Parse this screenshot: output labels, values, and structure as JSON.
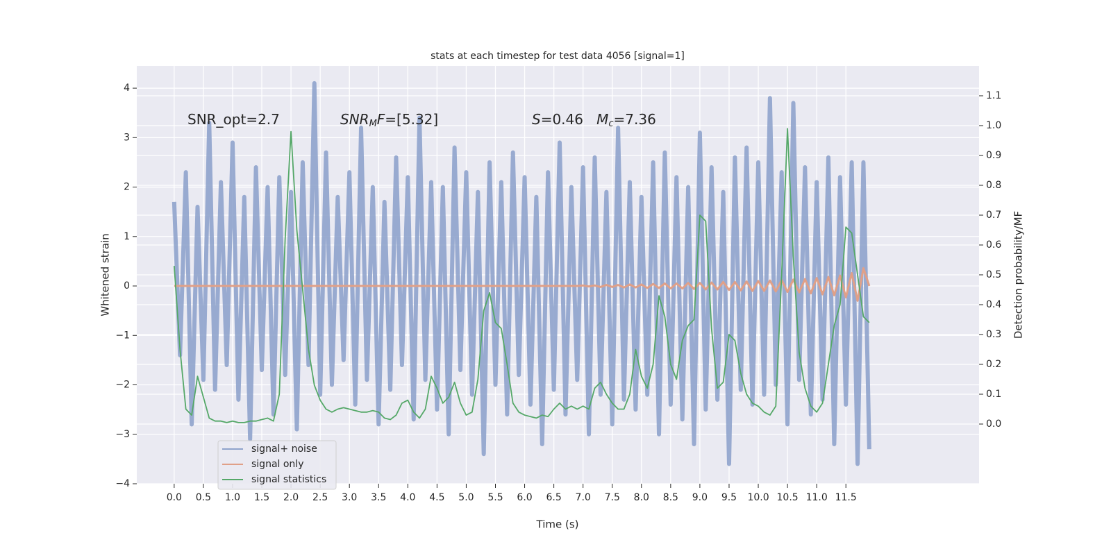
{
  "chart_data": {
    "type": "line",
    "title": "stats at each timestep for test data 4056 [signal=1]",
    "xlabel": "Time (s)",
    "ylabel": "Whitened strain",
    "y2label": "Detection probability/MF",
    "annotations": [
      [
        {
          "text": "SNR_opt=2.7"
        }
      ],
      [
        {
          "text": "SNR",
          "italic": true
        },
        {
          "text": "M",
          "italic": true,
          "sub": true
        },
        {
          "text": "F",
          "italic": true
        },
        {
          "text": "=[5.32]"
        }
      ],
      [
        {
          "text": "S",
          "italic": true
        },
        {
          "text": "=0.46   "
        },
        {
          "text": "M",
          "italic": true
        },
        {
          "text": "c",
          "italic": true,
          "sub": true
        },
        {
          "text": "=7.36"
        }
      ]
    ],
    "grid": true,
    "legend": "lower left",
    "xlim": [
      -0.64,
      13.78
    ],
    "ylim": [
      -4.0,
      4.45
    ],
    "y2lim": [
      -0.2,
      1.2
    ],
    "xticks": [
      {
        "value": 0,
        "label": "0.0"
      },
      {
        "value": 0.5,
        "label": "0.5"
      },
      {
        "value": 1,
        "label": "1.0"
      },
      {
        "value": 1.5,
        "label": "1.5"
      },
      {
        "value": 2,
        "label": "2.0"
      },
      {
        "value": 2.5,
        "label": "2.5"
      },
      {
        "value": 3,
        "label": "3.0"
      },
      {
        "value": 3.5,
        "label": "3.5"
      },
      {
        "value": 4,
        "label": "4.0"
      },
      {
        "value": 4.5,
        "label": "4.5"
      },
      {
        "value": 5,
        "label": "5.0"
      },
      {
        "value": 5.5,
        "label": "5.5"
      },
      {
        "value": 6,
        "label": "6.0"
      },
      {
        "value": 6.5,
        "label": "6.5"
      },
      {
        "value": 7,
        "label": "7.0"
      },
      {
        "value": 7.5,
        "label": "7.5"
      },
      {
        "value": 8,
        "label": "8.0"
      },
      {
        "value": 8.5,
        "label": "8.5"
      },
      {
        "value": 9,
        "label": "9.0"
      },
      {
        "value": 9.5,
        "label": "9.5"
      },
      {
        "value": 10,
        "label": "10.0"
      },
      {
        "value": 10.5,
        "label": "10.5"
      },
      {
        "value": 11,
        "label": "11.0"
      },
      {
        "value": 11.5,
        "label": "11.5"
      }
    ],
    "yticks": [
      {
        "value": -4,
        "label": "−4"
      },
      {
        "value": -3,
        "label": "−3"
      },
      {
        "value": -2,
        "label": "−2"
      },
      {
        "value": -1,
        "label": "−1"
      },
      0,
      1,
      2,
      3,
      4
    ],
    "y2ticks": [
      {
        "value": 0,
        "label": "0.0"
      },
      {
        "value": 0.1,
        "label": "0.1"
      },
      {
        "value": 0.2,
        "label": "0.2"
      },
      {
        "value": 0.3,
        "label": "0.3"
      },
      {
        "value": 0.4,
        "label": "0.4"
      },
      {
        "value": 0.5,
        "label": "0.5"
      },
      {
        "value": 0.6,
        "label": "0.6"
      },
      {
        "value": 0.7,
        "label": "0.7"
      },
      {
        "value": 0.8,
        "label": "0.8"
      },
      {
        "value": 0.9,
        "label": "0.9"
      },
      {
        "value": 1,
        "label": "1.0"
      },
      {
        "value": 1.1,
        "label": "1.1"
      }
    ],
    "x": [
      0.0,
      0.1,
      0.2,
      0.3,
      0.4,
      0.5,
      0.6,
      0.7,
      0.8,
      0.9,
      1.0,
      1.1,
      1.2,
      1.3,
      1.4,
      1.5,
      1.6,
      1.7,
      1.8,
      1.9,
      2.0,
      2.1,
      2.2,
      2.3,
      2.4,
      2.5,
      2.6,
      2.7,
      2.8,
      2.9,
      3.0,
      3.1,
      3.2,
      3.3,
      3.4,
      3.5,
      3.6,
      3.7,
      3.8,
      3.9,
      4.0,
      4.1,
      4.2,
      4.3,
      4.4,
      4.5,
      4.6,
      4.7,
      4.8,
      4.9,
      5.0,
      5.1,
      5.2,
      5.3,
      5.4,
      5.5,
      5.6,
      5.7,
      5.8,
      5.9,
      6.0,
      6.1,
      6.2,
      6.3,
      6.4,
      6.5,
      6.6,
      6.7,
      6.8,
      6.9,
      7.0,
      7.1,
      7.2,
      7.3,
      7.4,
      7.5,
      7.6,
      7.7,
      7.8,
      7.9,
      8.0,
      8.1,
      8.2,
      8.3,
      8.4,
      8.5,
      8.6,
      8.7,
      8.8,
      8.9,
      9.0,
      9.1,
      9.2,
      9.3,
      9.4,
      9.5,
      9.6,
      9.7,
      9.8,
      9.9,
      10.0,
      10.1,
      10.2,
      10.3,
      10.4,
      10.5,
      10.6,
      10.7,
      10.8,
      10.9,
      11.0,
      11.1,
      11.2,
      11.3,
      11.4,
      11.5,
      11.6,
      11.7,
      11.8,
      11.9
    ],
    "series": [
      {
        "name": "signal+ noise",
        "color": "#8fa3cc",
        "values": [
          1.7,
          -1.4,
          2.3,
          -2.8,
          1.6,
          -1.9,
          3.3,
          -2.1,
          2.1,
          -1.6,
          2.9,
          -2.3,
          1.8,
          -3.1,
          2.4,
          -1.7,
          2.0,
          -2.6,
          2.2,
          -1.8,
          1.9,
          -2.9,
          2.5,
          -1.6,
          4.1,
          -2.2,
          2.7,
          -2.0,
          1.8,
          -1.5,
          2.3,
          -2.4,
          3.2,
          -1.9,
          2.0,
          -2.8,
          1.7,
          -2.1,
          2.6,
          -1.6,
          2.2,
          -2.7,
          3.4,
          -1.9,
          2.1,
          -2.5,
          2.0,
          -3.0,
          2.8,
          -1.7,
          2.3,
          -2.2,
          1.9,
          -3.4,
          2.5,
          -2.0,
          2.1,
          -2.6,
          2.7,
          -1.8,
          2.2,
          -2.4,
          1.8,
          -3.2,
          2.3,
          -2.1,
          2.9,
          -2.6,
          2.0,
          -1.9,
          2.4,
          -3.0,
          2.6,
          -2.2,
          1.9,
          -2.8,
          3.2,
          -2.3,
          2.1,
          -2.5,
          1.8,
          -2.2,
          2.5,
          -3.0,
          2.7,
          -2.4,
          2.2,
          -2.7,
          2.0,
          -3.2,
          3.1,
          -2.5,
          2.4,
          -2.3,
          1.9,
          -3.6,
          2.6,
          -2.1,
          2.8,
          -2.4,
          2.5,
          -2.2,
          3.8,
          -2.0,
          2.3,
          -2.8,
          3.7,
          -1.9,
          2.4,
          -2.6,
          2.1,
          -2.3,
          2.6,
          -3.2,
          2.2,
          -2.4,
          2.5,
          -3.6,
          2.5,
          -3.3
        ]
      },
      {
        "name": "signal only",
        "color": "#e0a088",
        "values": [
          0,
          0,
          0,
          0,
          0,
          0,
          0,
          0,
          0,
          0,
          0,
          0,
          0,
          0,
          0,
          0,
          0,
          0,
          0,
          0,
          0,
          0,
          0,
          0,
          0,
          0,
          0,
          0,
          0,
          0,
          0,
          0,
          0,
          0,
          0,
          0,
          0,
          0,
          0,
          0,
          0,
          0,
          0,
          0,
          0,
          0,
          0,
          0,
          0,
          0,
          0,
          0,
          0,
          0,
          0,
          0,
          0,
          0,
          0,
          0,
          0,
          0,
          0,
          0,
          0,
          0,
          0,
          0,
          0,
          0,
          0.01,
          -0.01,
          0.01,
          -0.02,
          0.02,
          -0.02,
          0.02,
          -0.03,
          0.03,
          -0.03,
          0.03,
          -0.04,
          0.04,
          -0.04,
          0.05,
          -0.05,
          0.05,
          -0.05,
          0.06,
          -0.06,
          0.06,
          -0.07,
          0.07,
          -0.07,
          0.08,
          -0.08,
          0.08,
          -0.09,
          0.09,
          -0.1,
          0.1,
          -0.1,
          0.11,
          -0.11,
          0.12,
          -0.12,
          0.13,
          -0.13,
          0.14,
          -0.15,
          0.16,
          -0.17,
          0.18,
          -0.19,
          0.21,
          -0.23,
          0.26,
          -0.3,
          0.36,
          0.0
        ]
      },
      {
        "name": "signal statistics",
        "color": "#55a868",
        "axis": "y2",
        "values": [
          0.53,
          0.25,
          0.05,
          0.03,
          0.16,
          0.09,
          0.02,
          0.01,
          0.01,
          0.005,
          0.01,
          0.005,
          0.005,
          0.01,
          0.01,
          0.015,
          0.02,
          0.01,
          0.1,
          0.62,
          0.98,
          0.65,
          0.45,
          0.25,
          0.13,
          0.08,
          0.05,
          0.04,
          0.05,
          0.055,
          0.05,
          0.045,
          0.04,
          0.04,
          0.045,
          0.04,
          0.02,
          0.015,
          0.03,
          0.07,
          0.08,
          0.04,
          0.02,
          0.05,
          0.16,
          0.12,
          0.07,
          0.09,
          0.14,
          0.07,
          0.03,
          0.04,
          0.15,
          0.38,
          0.44,
          0.34,
          0.32,
          0.2,
          0.07,
          0.04,
          0.03,
          0.025,
          0.02,
          0.03,
          0.025,
          0.05,
          0.07,
          0.05,
          0.06,
          0.05,
          0.06,
          0.05,
          0.12,
          0.14,
          0.1,
          0.07,
          0.05,
          0.05,
          0.1,
          0.25,
          0.16,
          0.12,
          0.2,
          0.43,
          0.36,
          0.2,
          0.15,
          0.28,
          0.33,
          0.35,
          0.7,
          0.68,
          0.32,
          0.12,
          0.14,
          0.3,
          0.28,
          0.17,
          0.1,
          0.07,
          0.06,
          0.04,
          0.03,
          0.06,
          0.5,
          0.99,
          0.56,
          0.24,
          0.12,
          0.06,
          0.04,
          0.07,
          0.2,
          0.33,
          0.4,
          0.66,
          0.64,
          0.5,
          0.36,
          0.34
        ]
      }
    ]
  }
}
